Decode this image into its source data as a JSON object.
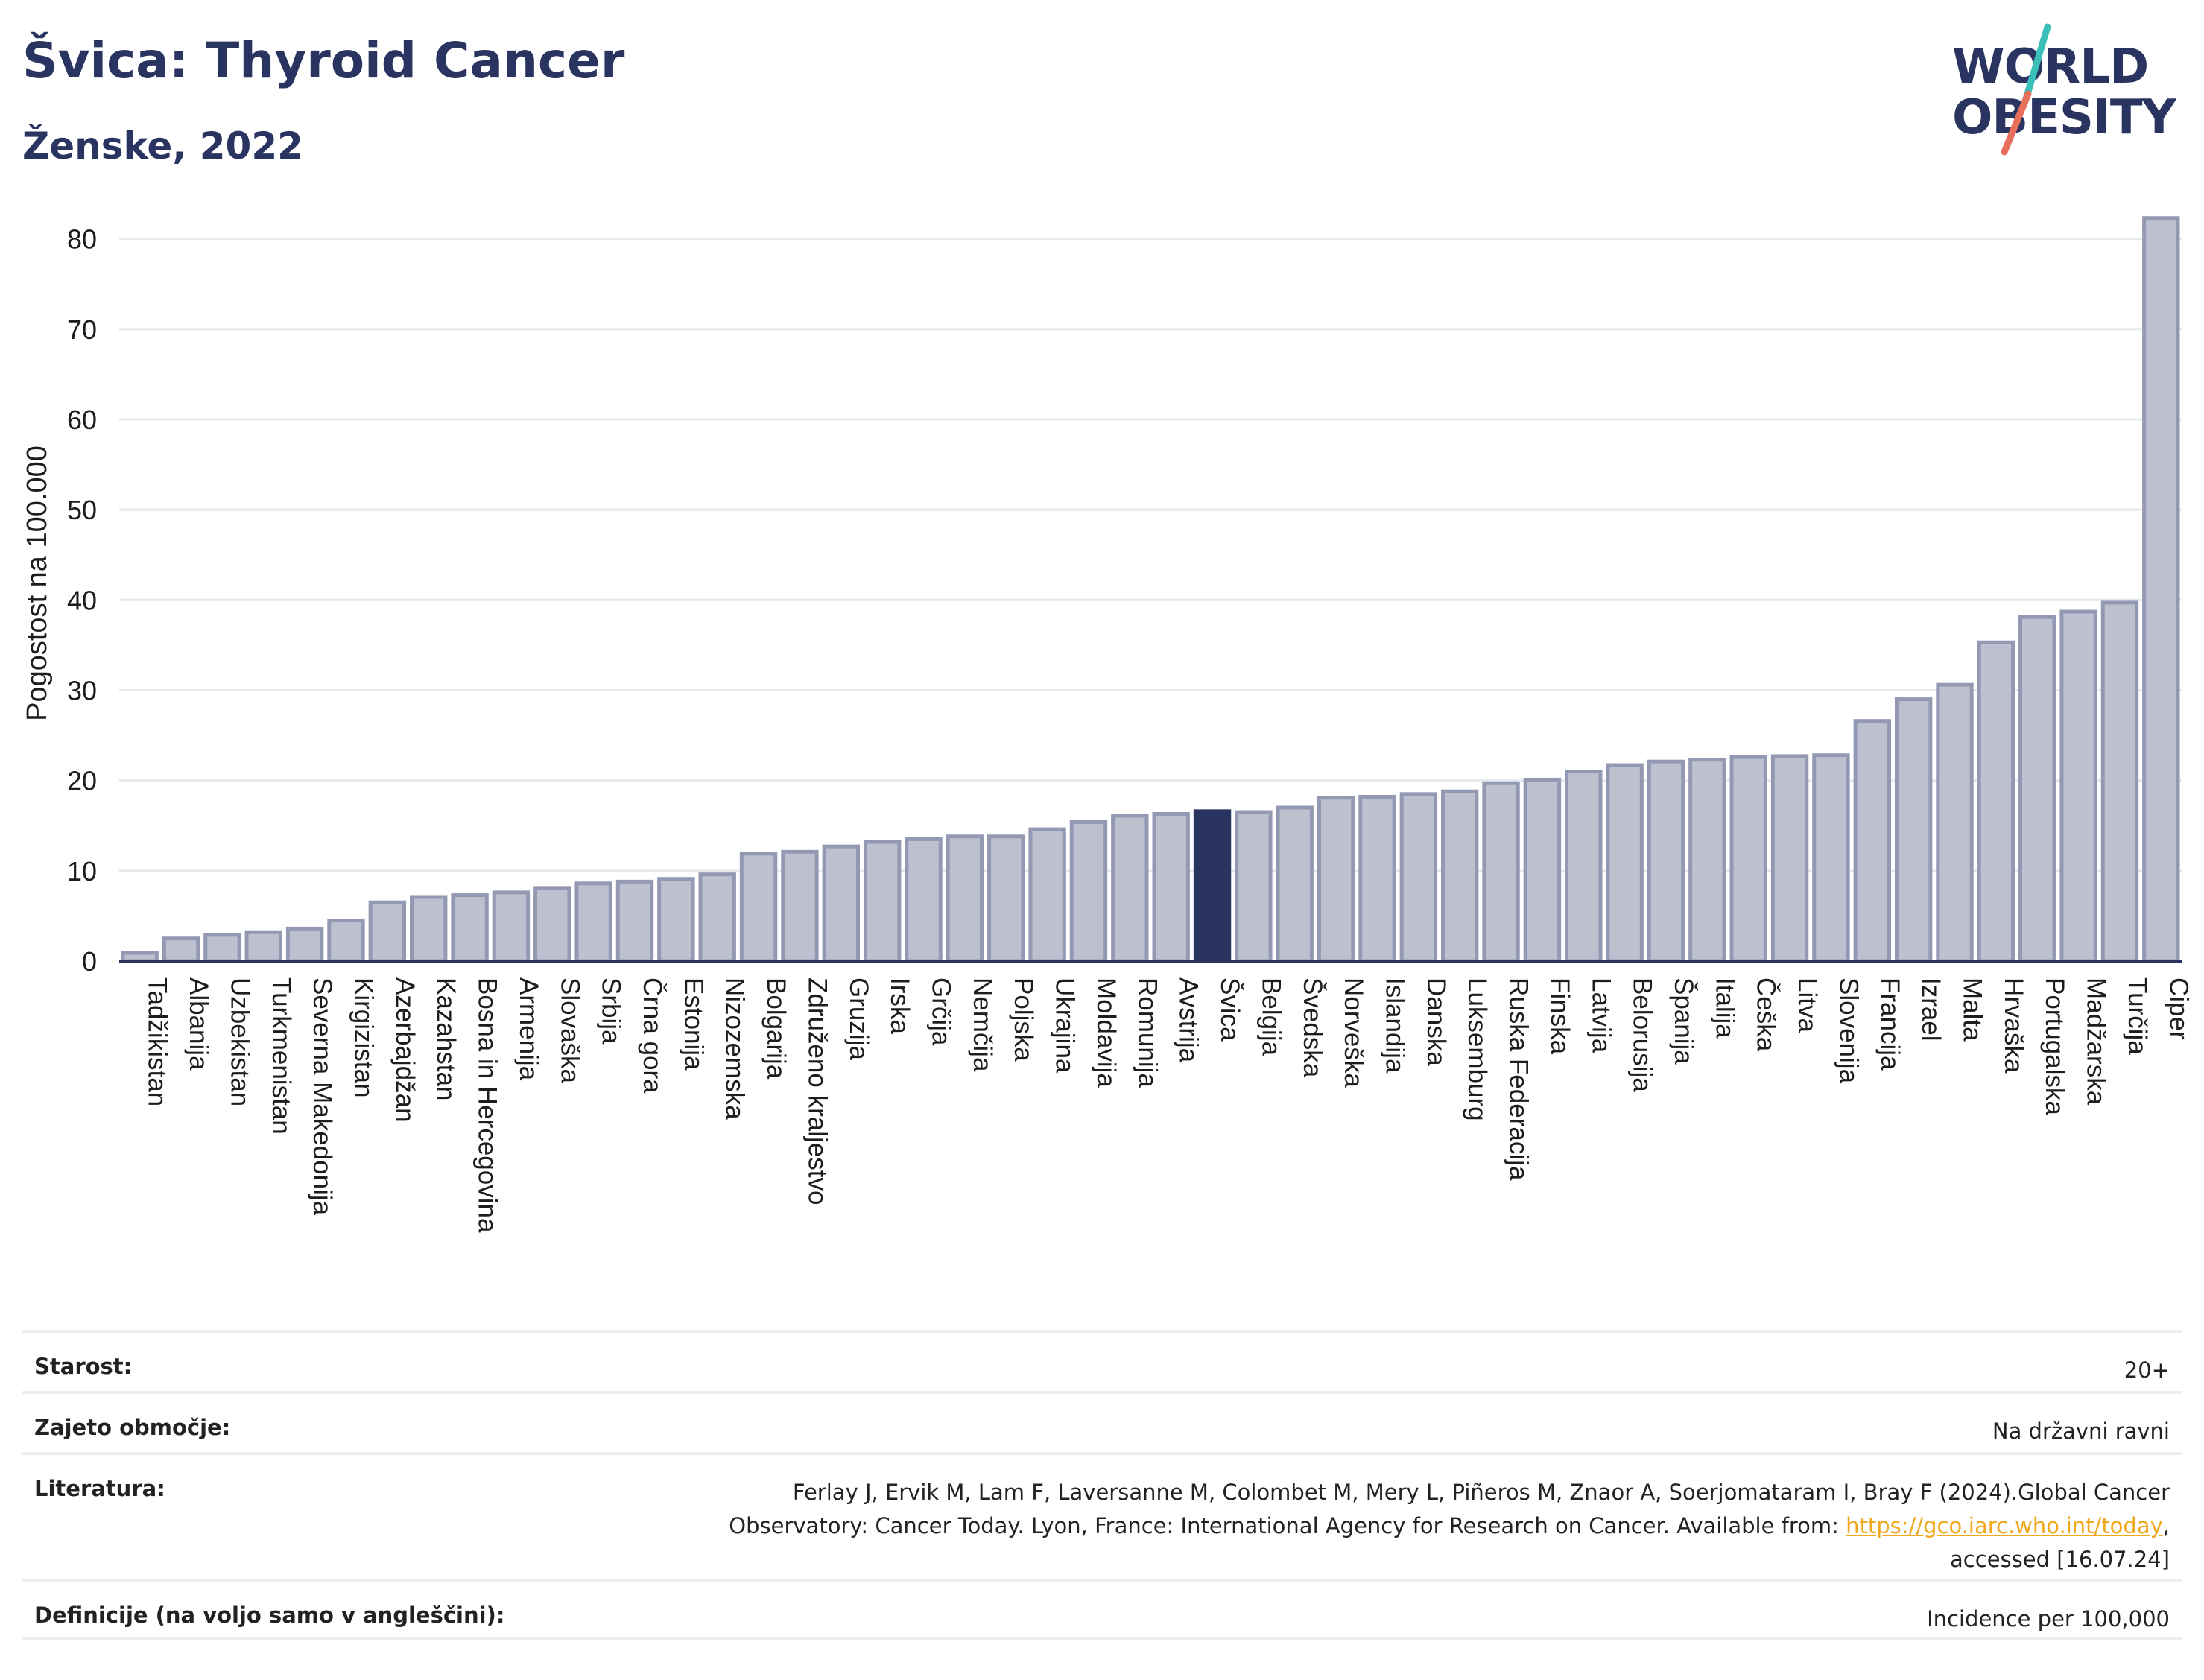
{
  "header": {
    "title": "Švica: Thyroid Cancer",
    "subtitle": "Ženske, 2022"
  },
  "logo": {
    "line1": "WORLD",
    "line2": "OBESITY",
    "slash_colors": [
      "#3bbfb9",
      "#e8705a"
    ]
  },
  "chart_data": {
    "type": "bar",
    "ylabel": "Pogostost na 100.000",
    "xlabel": "",
    "ylim": [
      0,
      85
    ],
    "yticks": [
      0,
      10,
      20,
      30,
      40,
      50,
      60,
      70,
      80
    ],
    "grid": true,
    "highlight": "Švica",
    "colors": {
      "bar_fill": "#bcc0cf",
      "bar_stroke": "#9499b3",
      "highlight_fill": "#2a3460",
      "grid": "#e6e8ee",
      "axis": "#2a3460"
    },
    "categories": [
      "Tadžikistan",
      "Albanija",
      "Uzbekistan",
      "Turkmenistan",
      "Severna Makedonija",
      "Kirgizistan",
      "Azerbajdžan",
      "Kazahstan",
      "Bosna in Hercegovina",
      "Armenija",
      "Slovaška",
      "Srbija",
      "Črna gora",
      "Estonija",
      "Nizozemska",
      "Bolgarija",
      "Združeno kraljestvo",
      "Gruzija",
      "Irska",
      "Grčija",
      "Nemčija",
      "Poljska",
      "Ukrajina",
      "Moldavija",
      "Romunija",
      "Avstrija",
      "Švica",
      "Belgija",
      "Švedska",
      "Norveška",
      "Islandija",
      "Danska",
      "Luksemburg",
      "Ruska Federacija",
      "Finska",
      "Latvija",
      "Belorusija",
      "Španija",
      "Italija",
      "Češka",
      "Litva",
      "Slovenija",
      "Francija",
      "Izrael",
      "Malta",
      "Hrvaška",
      "Portugalska",
      "Madžarska",
      "Turčija",
      "Ciper"
    ],
    "values": [
      0.9,
      2.5,
      2.9,
      3.2,
      3.6,
      4.5,
      6.5,
      7.1,
      7.3,
      7.6,
      8.1,
      8.6,
      8.8,
      9.1,
      9.6,
      11.9,
      12.1,
      12.7,
      13.2,
      13.5,
      13.8,
      13.8,
      14.6,
      15.4,
      16.1,
      16.3,
      16.6,
      16.5,
      17.0,
      18.1,
      18.2,
      18.5,
      18.8,
      19.7,
      20.1,
      21.0,
      21.7,
      22.1,
      22.3,
      22.6,
      22.7,
      22.8,
      26.6,
      29.0,
      30.6,
      35.3,
      38.1,
      38.7,
      39.7,
      82.3
    ]
  },
  "info": {
    "rows": [
      {
        "label": "Starost:",
        "value": "20+"
      },
      {
        "label": "Zajeto območje:",
        "value": "Na državni ravni"
      },
      {
        "label": "Literatura:",
        "value_line1": "Ferlay J, Ervik M, Lam F, Laversanne M, Colombet M, Mery L, Piñeros M, Znaor A, Soerjomataram I, Bray F (2024).Global Cancer",
        "value_line2": "Observatory: Cancer Today. Lyon, France: International Agency for Research on Cancer. Available from: ",
        "link": "https://gco.iarc.who.int/today",
        "value_line2_end": ",",
        "value_line3": "accessed [16.07.24]"
      },
      {
        "label": "Definicije (na voljo samo v angleščini):",
        "value": "Incidence per 100,000"
      }
    ]
  }
}
